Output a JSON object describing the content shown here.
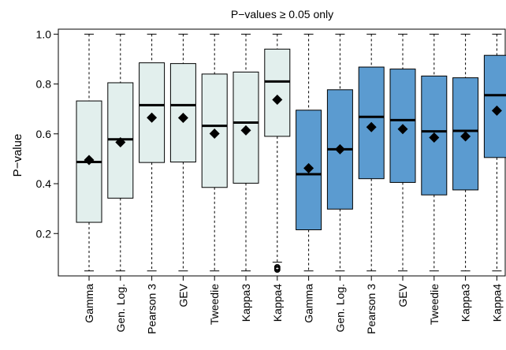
{
  "chart_data": {
    "type": "box",
    "title": "P−values ≥ 0.05 only",
    "xlabel": "",
    "ylabel": "P−value",
    "ylim": [
      0.03,
      1.02
    ],
    "yticks": [
      0.2,
      0.4,
      0.6,
      0.8,
      1.0
    ],
    "ytick_labels": [
      "0.2",
      "0.4",
      "0.6",
      "0.8",
      "1.0"
    ],
    "grid": false,
    "colors": {
      "group1": "#e2efed",
      "group2": "#5b9bd0",
      "stroke": "#000000"
    },
    "categories": [
      "Gamma",
      "Gen. Log.",
      "Pearson 3",
      "GEV",
      "Tweedie",
      "Kappa3",
      "Kappa4",
      "Gamma",
      "Gen. Log.",
      "Pearson 3",
      "GEV",
      "Tweedie",
      "Kappa3",
      "Kappa4"
    ],
    "groups": [
      1,
      1,
      1,
      1,
      1,
      1,
      1,
      2,
      2,
      2,
      2,
      2,
      2,
      2
    ],
    "boxes": [
      {
        "whisker_low": 0.05,
        "q1": 0.245,
        "median": 0.487,
        "q3": 0.732,
        "whisker_high": 1.0,
        "mean": 0.495,
        "outliers": []
      },
      {
        "whisker_low": 0.05,
        "q1": 0.342,
        "median": 0.578,
        "q3": 0.805,
        "whisker_high": 1.0,
        "mean": 0.566,
        "outliers": []
      },
      {
        "whisker_low": 0.05,
        "q1": 0.485,
        "median": 0.715,
        "q3": 0.885,
        "whisker_high": 1.0,
        "mean": 0.665,
        "outliers": []
      },
      {
        "whisker_low": 0.05,
        "q1": 0.487,
        "median": 0.715,
        "q3": 0.882,
        "whisker_high": 1.0,
        "mean": 0.664,
        "outliers": []
      },
      {
        "whisker_low": 0.05,
        "q1": 0.385,
        "median": 0.632,
        "q3": 0.84,
        "whisker_high": 1.0,
        "mean": 0.601,
        "outliers": []
      },
      {
        "whisker_low": 0.05,
        "q1": 0.402,
        "median": 0.645,
        "q3": 0.848,
        "whisker_high": 1.0,
        "mean": 0.614,
        "outliers": []
      },
      {
        "whisker_low": 0.085,
        "q1": 0.59,
        "median": 0.81,
        "q3": 0.94,
        "whisker_high": 1.0,
        "mean": 0.737,
        "outliers": [
          0.055,
          0.06,
          0.065
        ]
      },
      {
        "whisker_low": 0.05,
        "q1": 0.215,
        "median": 0.438,
        "q3": 0.695,
        "whisker_high": 1.0,
        "mean": 0.462,
        "outliers": []
      },
      {
        "whisker_low": 0.05,
        "q1": 0.298,
        "median": 0.538,
        "q3": 0.777,
        "whisker_high": 1.0,
        "mean": 0.538,
        "outliers": []
      },
      {
        "whisker_low": 0.05,
        "q1": 0.42,
        "median": 0.668,
        "q3": 0.868,
        "whisker_high": 1.0,
        "mean": 0.627,
        "outliers": []
      },
      {
        "whisker_low": 0.05,
        "q1": 0.405,
        "median": 0.655,
        "q3": 0.86,
        "whisker_high": 1.0,
        "mean": 0.619,
        "outliers": []
      },
      {
        "whisker_low": 0.05,
        "q1": 0.355,
        "median": 0.61,
        "q3": 0.832,
        "whisker_high": 1.0,
        "mean": 0.585,
        "outliers": []
      },
      {
        "whisker_low": 0.05,
        "q1": 0.375,
        "median": 0.612,
        "q3": 0.825,
        "whisker_high": 1.0,
        "mean": 0.59,
        "outliers": []
      },
      {
        "whisker_low": 0.05,
        "q1": 0.505,
        "median": 0.755,
        "q3": 0.915,
        "whisker_high": 1.0,
        "mean": 0.693,
        "outliers": []
      }
    ]
  }
}
